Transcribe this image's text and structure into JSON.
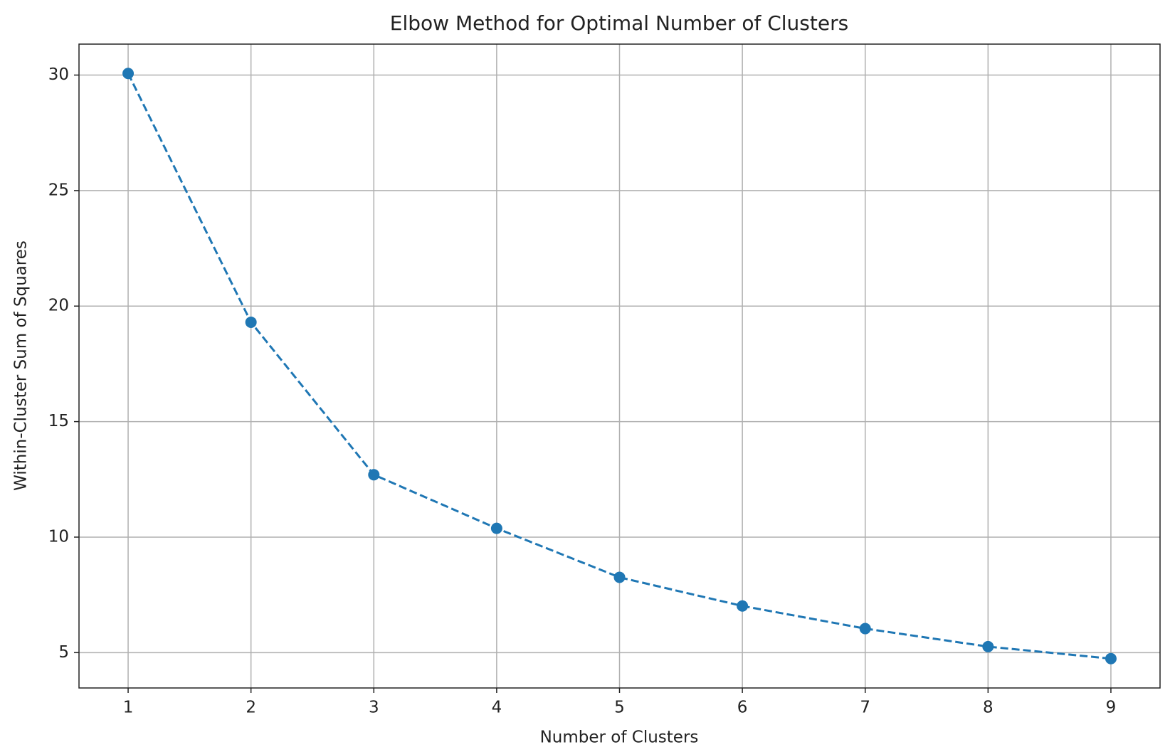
{
  "chart_data": {
    "type": "line",
    "title": "Elbow Method for Optimal Number of Clusters",
    "x_label": "Number of Clusters",
    "y_label": "Within-Cluster Sum of Squares",
    "x": [
      1,
      2,
      3,
      4,
      5,
      6,
      7,
      8,
      9
    ],
    "series": [
      {
        "color": "#1f77b4",
        "values": [
          30.07,
          19.3,
          12.7,
          10.38,
          8.26,
          7.02,
          6.04,
          5.26,
          4.74
        ]
      }
    ],
    "xlim": [
      0.6,
      9.4
    ],
    "xticks": [
      1,
      2,
      3,
      4,
      5,
      6,
      7,
      8,
      9
    ],
    "ylim": [
      3.47,
      31.34
    ],
    "yticks": [
      5,
      10,
      15,
      20,
      25,
      30
    ],
    "grid": true,
    "line_style": "dashed",
    "marker": "circle"
  }
}
